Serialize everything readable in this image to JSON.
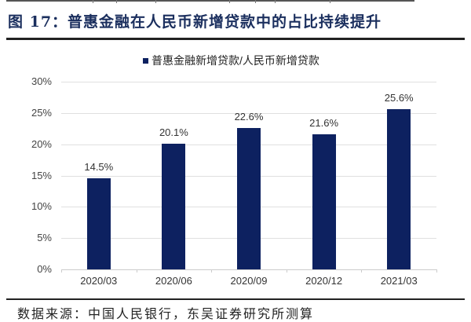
{
  "figure": {
    "title": "图 17：普惠金融在人民币新增贷款中的占比持续提升",
    "source": "数据来源：中国人民银行，东吴证券研究所测算"
  },
  "legend": {
    "label": "普惠金融新增贷款/人民币新增贷款",
    "color": "#0d2160"
  },
  "yticks": [
    "30%",
    "25%",
    "20%",
    "15%",
    "10%",
    "5%",
    "0%"
  ],
  "bars": [
    {
      "category": "2020/03",
      "value": 14.5,
      "label": "14.5%"
    },
    {
      "category": "2020/06",
      "value": 20.1,
      "label": "20.1%"
    },
    {
      "category": "2020/09",
      "value": 22.6,
      "label": "22.6%"
    },
    {
      "category": "2020/12",
      "value": 21.6,
      "label": "21.6%"
    },
    {
      "category": "2021/03",
      "value": 25.6,
      "label": "25.6%"
    }
  ],
  "chart_data": {
    "type": "bar",
    "title": "普惠金融在人民币新增贷款中的占比持续提升",
    "categories": [
      "2020/03",
      "2020/06",
      "2020/09",
      "2020/12",
      "2021/03"
    ],
    "series": [
      {
        "name": "普惠金融新增贷款/人民币新增贷款",
        "values": [
          14.5,
          20.1,
          22.6,
          21.6,
          25.6
        ],
        "color": "#0d2160"
      }
    ],
    "xlabel": "",
    "ylabel": "",
    "ylim": [
      0,
      30
    ],
    "ytick_step": 5,
    "y_format": "percent",
    "grid": true,
    "legend_position": "top",
    "data_labels": true
  }
}
